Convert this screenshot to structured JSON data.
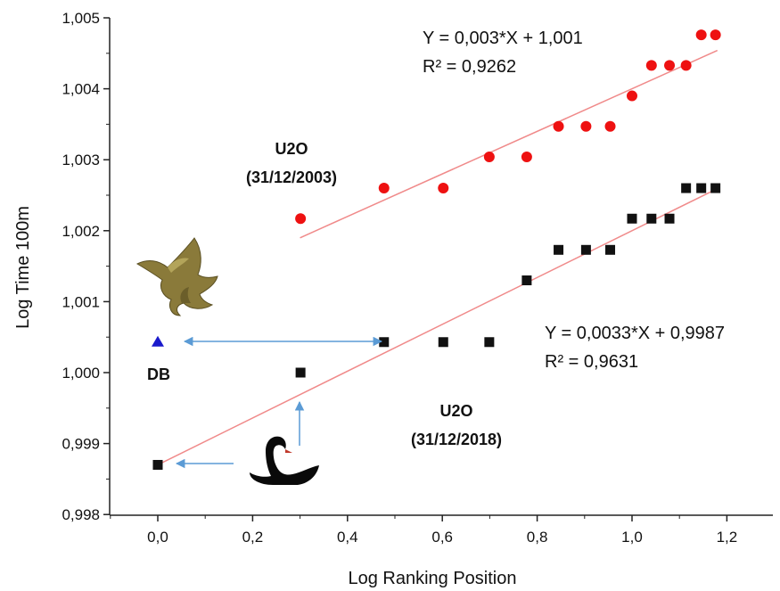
{
  "chart_data": {
    "type": "scatter",
    "xlabel": "Log Ranking Position",
    "ylabel": "Log Time 100m",
    "xlim": [
      -0.1,
      1.3
    ],
    "ylim": [
      0.998,
      1.005
    ],
    "x_ticks": [
      "0,0",
      "0,2",
      "0,4",
      "0,6",
      "0,8",
      "1,0",
      "1,2"
    ],
    "x_tick_values": [
      0,
      0.2,
      0.4,
      0.6,
      0.8,
      1.0,
      1.2
    ],
    "y_ticks": [
      "0,998",
      "0,999",
      "1,000",
      "1,001",
      "1,002",
      "1,003",
      "1,004",
      "1,005"
    ],
    "y_tick_values": [
      0.998,
      0.999,
      1.0,
      1.001,
      1.002,
      1.003,
      1.004,
      1.005
    ],
    "grid": false,
    "series": [
      {
        "name": "U2O (31/12/2003)",
        "label_lines": [
          "U2O",
          "(31/12/2003)"
        ],
        "marker": "circle",
        "color": "#ee1111",
        "x": [
          0.301,
          0.477,
          0.602,
          0.699,
          0.778,
          0.845,
          0.903,
          0.954,
          1.0,
          1.041,
          1.079,
          1.114,
          1.146,
          1.176
        ],
        "y": [
          1.00217,
          1.0026,
          1.0026,
          1.00304,
          1.00304,
          1.00347,
          1.00347,
          1.00347,
          1.0039,
          1.00433,
          1.00433,
          1.00433,
          1.00476,
          1.00476
        ],
        "fit": {
          "slope": 0.003,
          "intercept": 1.001,
          "x_range": [
            0.3,
            1.18
          ],
          "equation": "Y = 0,003*X + 1,001",
          "r2": "R² = 0,9262"
        }
      },
      {
        "name": "U2O (31/12/2018)",
        "label_lines": [
          "U2O",
          "(31/12/2018)"
        ],
        "marker": "square",
        "color": "#111111",
        "x": [
          0.0,
          0.301,
          0.477,
          0.602,
          0.699,
          0.778,
          0.845,
          0.903,
          0.954,
          1.0,
          1.041,
          1.079,
          1.114,
          1.146,
          1.176
        ],
        "y": [
          0.9987,
          1.0,
          1.00043,
          1.00043,
          1.00043,
          1.0013,
          1.00173,
          1.00173,
          1.00173,
          1.00217,
          1.00217,
          1.00217,
          1.0026,
          1.0026,
          1.0026
        ],
        "fit": {
          "slope": 0.0033,
          "intercept": 0.9987,
          "x_range": [
            0.0,
            1.18
          ],
          "equation": "Y = 0,0033*X + 0,9987",
          "r2": "R² = 0,9631"
        }
      },
      {
        "name": "DB",
        "marker": "triangle",
        "color": "#1a1acc",
        "x": [
          0.0
        ],
        "y": [
          1.00043
        ]
      }
    ],
    "fit_line_color": "#f08a8a",
    "arrow_color": "#5b9bd5"
  }
}
